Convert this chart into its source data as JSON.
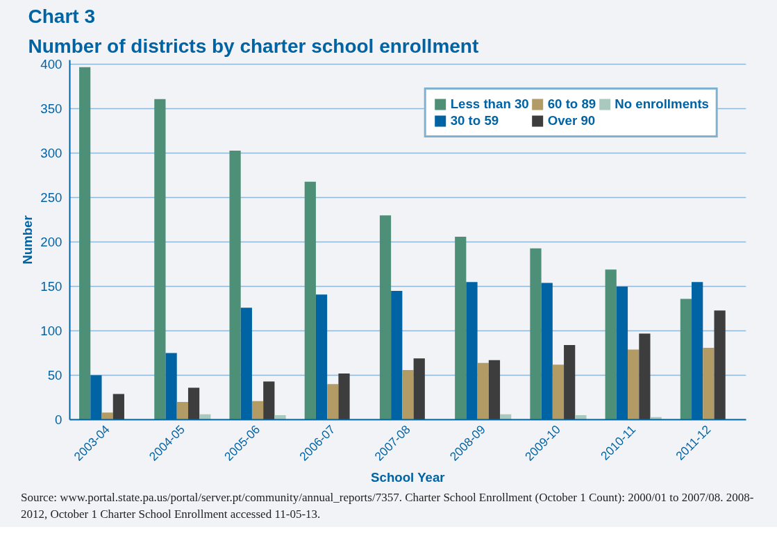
{
  "chart_data": {
    "type": "bar",
    "title": "Chart 3",
    "subtitle": "Number of districts by charter school enrollment",
    "xlabel": "School Year",
    "ylabel": "Number",
    "categories": [
      "2003-04",
      "2004-05",
      "2005-06",
      "2006-07",
      "2007-08",
      "2008-09",
      "2009-10",
      "2010-11",
      "2011-12"
    ],
    "series": [
      {
        "name": "Less than 30",
        "color": "#4e8f78",
        "values": [
          397,
          361,
          303,
          268,
          230,
          206,
          193,
          169,
          136
        ]
      },
      {
        "name": "30 to 59",
        "color": "#0063a4",
        "values": [
          50,
          75,
          126,
          141,
          145,
          155,
          154,
          150,
          155
        ]
      },
      {
        "name": "60 to 89",
        "color": "#b39b65",
        "values": [
          8,
          20,
          21,
          40,
          56,
          64,
          62,
          79,
          81
        ]
      },
      {
        "name": "Over 90",
        "color": "#3d3d3d",
        "values": [
          29,
          36,
          43,
          52,
          69,
          67,
          84,
          97,
          123
        ]
      },
      {
        "name": "No enrollments",
        "color": "#a9c9bf",
        "values": [
          0,
          6,
          5,
          null,
          0,
          6,
          5,
          3,
          0
        ]
      }
    ],
    "ylim": [
      0,
      405
    ],
    "yticks": [
      0,
      50,
      100,
      150,
      200,
      250,
      300,
      350,
      400
    ],
    "grid": "y",
    "legend": "top right",
    "annotations": [
      "Source: www.portal.state.pa.us/portal/server.pt/community/annual_reports/7357. Charter School Enrollment (October 1 Count): 2000/01 to 2007/08. 2008-2012, October 1 Charter School Enrollment accessed 11-05-13."
    ]
  }
}
